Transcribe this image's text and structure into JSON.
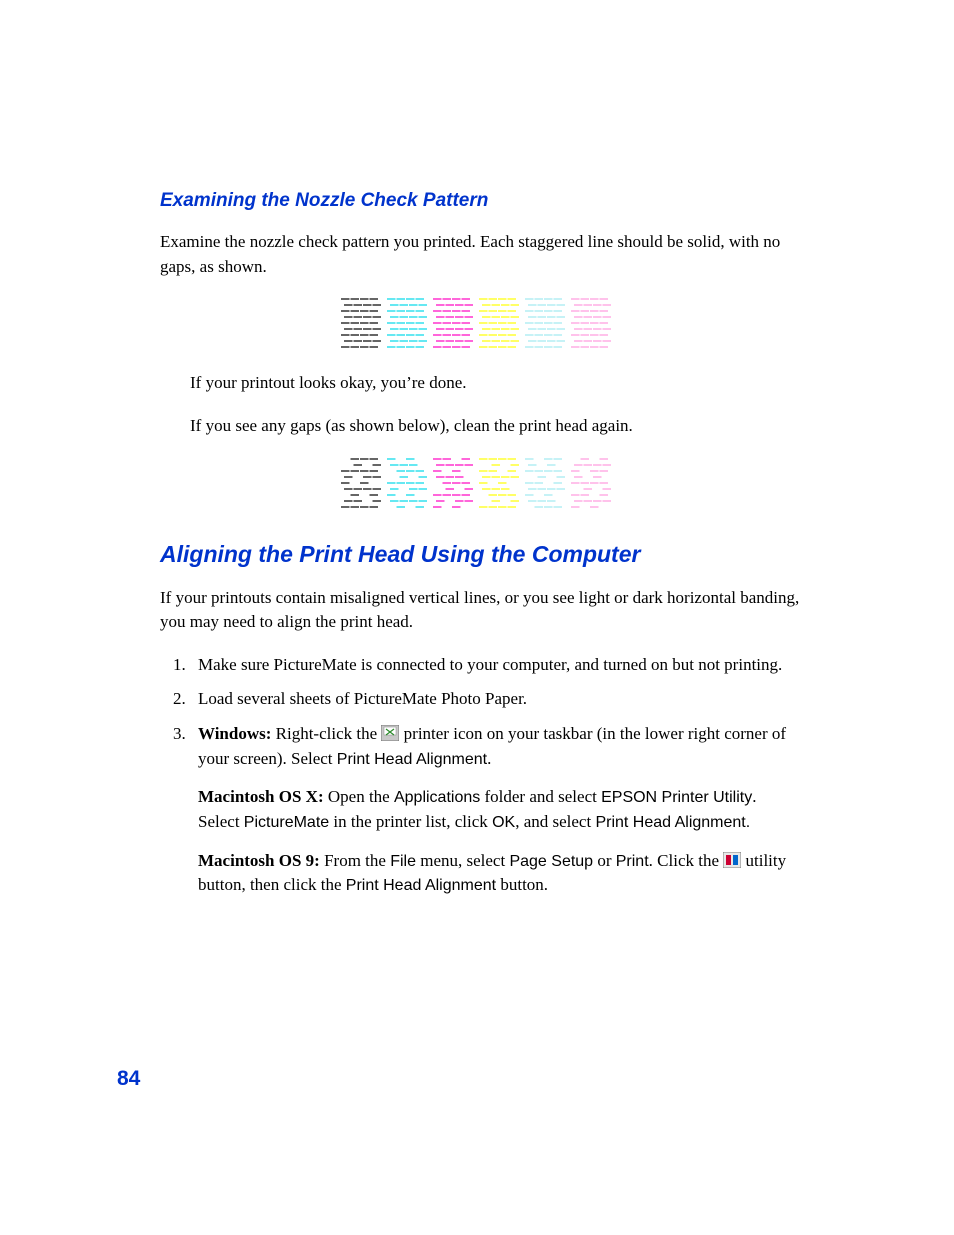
{
  "colors": {
    "heading": "#0033cc",
    "body_text": "#000000",
    "background": "#ffffff",
    "pattern_colors": {
      "black": "#000000",
      "cyan": "#00d8e8",
      "magenta": "#ff00c0",
      "yellow": "#ffff00",
      "lightcyan": "#a0e8f0",
      "lightmagenta": "#ff99dd"
    }
  },
  "typography": {
    "h3_fontsize": 19,
    "h2_fontsize": 23,
    "body_fontsize": 17,
    "pagenum_fontsize": 21,
    "body_font": "Georgia, Times New Roman, serif",
    "heading_font": "Arial, Helvetica, sans-serif"
  },
  "section1": {
    "heading": "Examining the Nozzle Check Pattern",
    "para1": "Examine the nozzle check pattern you printed. Each staggered line should be solid, with no gaps, as shown.",
    "para2": "If your printout looks okay, you’re done.",
    "para3": "If you see any gaps (as shown below), clean the print head again."
  },
  "section2": {
    "heading": "Aligning the Print Head Using the Computer",
    "para1": "If your printouts contain misaligned vertical lines, or you see light or dark horizontal banding, you may need to align the print head.",
    "steps": {
      "s1": "Make sure PictureMate is connected to your computer, and turned on but not printing.",
      "s2": "Load several sheets of PictureMate Photo Paper.",
      "s3": {
        "win_label": "Windows:",
        "win_a": " Right-click the ",
        "win_b": " printer icon on your taskbar (in the lower right corner of your screen). Select ",
        "win_c": "Print Head Alignment",
        "win_d": ".",
        "osx_label": "Macintosh OS X:",
        "osx_a": " Open the ",
        "osx_b": "Applications",
        "osx_c": " folder and select ",
        "osx_d": "EPSON Printer Utility",
        "osx_e": ". Select ",
        "osx_f": "PictureMate",
        "osx_g": " in the printer list, click ",
        "osx_h": "OK",
        "osx_i": ", and select ",
        "osx_j": "Print Head Alignment",
        "osx_k": ".",
        "os9_label": "Macintosh OS 9:",
        "os9_a": " From the ",
        "os9_b": "File",
        "os9_c": " menu, select ",
        "os9_d": "Page Setup",
        "os9_e": " or ",
        "os9_f": "Print",
        "os9_g": ". Click the ",
        "os9_h": " utility button, then click the ",
        "os9_i": "Print Head Alignment",
        "os9_j": " button."
      }
    }
  },
  "pattern_diagram": {
    "type": "nozzle-check-staggered",
    "block_count": 6,
    "block_colors": [
      "#000000",
      "#00d8e8",
      "#ff00c0",
      "#ffff00",
      "#a0e8f0",
      "#ff99dd"
    ],
    "block_width": 44,
    "block_height": 54,
    "stagger_rows": 9,
    "second_has_gaps": true
  },
  "page_number": "84"
}
